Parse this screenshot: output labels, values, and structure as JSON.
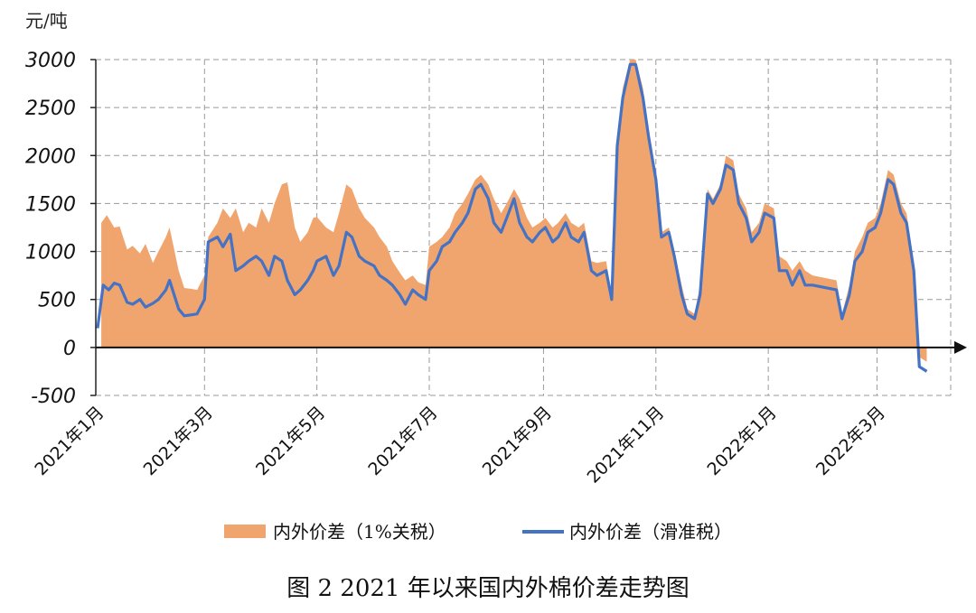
{
  "chart_data": {
    "type": "area",
    "y_unit": "元/吨",
    "ylim": [
      -500,
      3000
    ],
    "yticks": [
      3000,
      2500,
      2000,
      1500,
      1000,
      500,
      0,
      -500
    ],
    "x_tick_labels": [
      "2021年1月",
      "2021年3月",
      "2021年5月",
      "2021年7月",
      "2021年9月",
      "2021年11月",
      "2022年1月",
      "2022年3月"
    ],
    "x_ticks": [
      "2021-01-01",
      "2021-03-01",
      "2021-05-01",
      "2021-07-01",
      "2021-09-01",
      "2021-11-01",
      "2022-01-01",
      "2022-03-01"
    ],
    "grid": true,
    "legend_position": "bottom",
    "series": [
      {
        "name": "内外价差（1%关税）",
        "kind": "area",
        "color": "#f0a46e",
        "points": [
          [
            "2021-01-04",
            1300
          ],
          [
            "2021-01-07",
            1380
          ],
          [
            "2021-01-11",
            1250
          ],
          [
            "2021-01-14",
            1260
          ],
          [
            "2021-01-18",
            1020
          ],
          [
            "2021-01-21",
            1060
          ],
          [
            "2021-01-25",
            980
          ],
          [
            "2021-01-28",
            1080
          ],
          [
            "2021-02-01",
            880
          ],
          [
            "2021-02-04",
            1000
          ],
          [
            "2021-02-08",
            1150
          ],
          [
            "2021-02-10",
            1250
          ],
          [
            "2021-02-15",
            800
          ],
          [
            "2021-02-18",
            620
          ],
          [
            "2021-02-22",
            610
          ],
          [
            "2021-02-25",
            600
          ],
          [
            "2021-03-01",
            750
          ],
          [
            "2021-03-03",
            1150
          ],
          [
            "2021-03-08",
            1300
          ],
          [
            "2021-03-11",
            1450
          ],
          [
            "2021-03-15",
            1350
          ],
          [
            "2021-03-18",
            1450
          ],
          [
            "2021-03-22",
            1200
          ],
          [
            "2021-03-25",
            1300
          ],
          [
            "2021-03-29",
            1250
          ],
          [
            "2021-04-01",
            1450
          ],
          [
            "2021-04-05",
            1300
          ],
          [
            "2021-04-08",
            1500
          ],
          [
            "2021-04-12",
            1700
          ],
          [
            "2021-04-15",
            1720
          ],
          [
            "2021-04-19",
            1250
          ],
          [
            "2021-04-22",
            1100
          ],
          [
            "2021-04-26",
            1200
          ],
          [
            "2021-04-29",
            1350
          ],
          [
            "2021-05-01",
            1360
          ],
          [
            "2021-05-06",
            1250
          ],
          [
            "2021-05-10",
            1200
          ],
          [
            "2021-05-13",
            1400
          ],
          [
            "2021-05-17",
            1700
          ],
          [
            "2021-05-20",
            1650
          ],
          [
            "2021-05-24",
            1450
          ],
          [
            "2021-05-27",
            1350
          ],
          [
            "2021-06-01",
            1250
          ],
          [
            "2021-06-04",
            1150
          ],
          [
            "2021-06-08",
            1050
          ],
          [
            "2021-06-11",
            900
          ],
          [
            "2021-06-15",
            780
          ],
          [
            "2021-06-18",
            700
          ],
          [
            "2021-06-22",
            750
          ],
          [
            "2021-06-25",
            680
          ],
          [
            "2021-06-29",
            650
          ],
          [
            "2021-07-01",
            1050
          ],
          [
            "2021-07-05",
            1100
          ],
          [
            "2021-07-08",
            1150
          ],
          [
            "2021-07-12",
            1250
          ],
          [
            "2021-07-15",
            1400
          ],
          [
            "2021-07-19",
            1500
          ],
          [
            "2021-07-22",
            1600
          ],
          [
            "2021-07-26",
            1750
          ],
          [
            "2021-07-29",
            1800
          ],
          [
            "2021-08-02",
            1700
          ],
          [
            "2021-08-05",
            1550
          ],
          [
            "2021-08-09",
            1400
          ],
          [
            "2021-08-12",
            1500
          ],
          [
            "2021-08-16",
            1650
          ],
          [
            "2021-08-19",
            1550
          ],
          [
            "2021-08-23",
            1350
          ],
          [
            "2021-08-26",
            1250
          ],
          [
            "2021-08-30",
            1300
          ],
          [
            "2021-09-02",
            1350
          ],
          [
            "2021-09-06",
            1250
          ],
          [
            "2021-09-09",
            1300
          ],
          [
            "2021-09-13",
            1400
          ],
          [
            "2021-09-16",
            1300
          ],
          [
            "2021-09-20",
            1250
          ],
          [
            "2021-09-23",
            1300
          ],
          [
            "2021-09-27",
            900
          ],
          [
            "2021-09-30",
            880
          ],
          [
            "2021-10-05",
            900
          ],
          [
            "2021-10-08",
            550
          ],
          [
            "2021-10-11",
            2200
          ],
          [
            "2021-10-14",
            2700
          ],
          [
            "2021-10-18",
            3000
          ],
          [
            "2021-10-21",
            3000
          ],
          [
            "2021-10-25",
            2700
          ],
          [
            "2021-10-28",
            2300
          ],
          [
            "2021-11-01",
            1800
          ],
          [
            "2021-11-04",
            1200
          ],
          [
            "2021-11-08",
            1250
          ],
          [
            "2021-11-11",
            1000
          ],
          [
            "2021-11-15",
            650
          ],
          [
            "2021-11-18",
            400
          ],
          [
            "2021-11-22",
            350
          ],
          [
            "2021-11-25",
            650
          ],
          [
            "2021-11-29",
            1650
          ],
          [
            "2021-12-02",
            1550
          ],
          [
            "2021-12-06",
            1700
          ],
          [
            "2021-12-09",
            2000
          ],
          [
            "2021-12-13",
            1950
          ],
          [
            "2021-12-16",
            1600
          ],
          [
            "2021-12-20",
            1450
          ],
          [
            "2021-12-23",
            1200
          ],
          [
            "2021-12-27",
            1300
          ],
          [
            "2021-12-30",
            1500
          ],
          [
            "2022-01-04",
            1450
          ],
          [
            "2022-01-07",
            950
          ],
          [
            "2022-01-11",
            900
          ],
          [
            "2022-01-14",
            800
          ],
          [
            "2022-01-18",
            900
          ],
          [
            "2022-01-21",
            800
          ],
          [
            "2022-01-25",
            750
          ],
          [
            "2022-02-07",
            700
          ],
          [
            "2022-02-10",
            350
          ],
          [
            "2022-02-14",
            650
          ],
          [
            "2022-02-17",
            1000
          ],
          [
            "2022-02-21",
            1150
          ],
          [
            "2022-02-24",
            1300
          ],
          [
            "2022-02-28",
            1350
          ],
          [
            "2022-03-03",
            1500
          ],
          [
            "2022-03-07",
            1850
          ],
          [
            "2022-03-10",
            1800
          ],
          [
            "2022-03-14",
            1500
          ],
          [
            "2022-03-17",
            1400
          ],
          [
            "2022-03-21",
            900
          ],
          [
            "2022-03-24",
            -100
          ],
          [
            "2022-03-28",
            -150
          ]
        ]
      },
      {
        "name": "内外价差（滑准税）",
        "kind": "line",
        "color": "#4472c4",
        "points": [
          [
            "2021-01-02",
            200
          ],
          [
            "2021-01-05",
            650
          ],
          [
            "2021-01-08",
            600
          ],
          [
            "2021-01-11",
            670
          ],
          [
            "2021-01-14",
            650
          ],
          [
            "2021-01-18",
            470
          ],
          [
            "2021-01-21",
            450
          ],
          [
            "2021-01-25",
            500
          ],
          [
            "2021-01-28",
            420
          ],
          [
            "2021-02-01",
            460
          ],
          [
            "2021-02-04",
            500
          ],
          [
            "2021-02-08",
            600
          ],
          [
            "2021-02-10",
            700
          ],
          [
            "2021-02-15",
            400
          ],
          [
            "2021-02-18",
            330
          ],
          [
            "2021-02-22",
            340
          ],
          [
            "2021-02-25",
            350
          ],
          [
            "2021-03-01",
            500
          ],
          [
            "2021-03-03",
            1100
          ],
          [
            "2021-03-08",
            1150
          ],
          [
            "2021-03-11",
            1050
          ],
          [
            "2021-03-15",
            1180
          ],
          [
            "2021-03-18",
            800
          ],
          [
            "2021-03-22",
            850
          ],
          [
            "2021-03-25",
            900
          ],
          [
            "2021-03-29",
            950
          ],
          [
            "2021-04-01",
            900
          ],
          [
            "2021-04-05",
            750
          ],
          [
            "2021-04-08",
            950
          ],
          [
            "2021-04-12",
            900
          ],
          [
            "2021-04-15",
            700
          ],
          [
            "2021-04-19",
            550
          ],
          [
            "2021-04-22",
            600
          ],
          [
            "2021-04-26",
            700
          ],
          [
            "2021-04-29",
            800
          ],
          [
            "2021-05-01",
            900
          ],
          [
            "2021-05-06",
            950
          ],
          [
            "2021-05-10",
            750
          ],
          [
            "2021-05-13",
            850
          ],
          [
            "2021-05-17",
            1200
          ],
          [
            "2021-05-20",
            1150
          ],
          [
            "2021-05-24",
            950
          ],
          [
            "2021-05-27",
            900
          ],
          [
            "2021-06-01",
            850
          ],
          [
            "2021-06-04",
            750
          ],
          [
            "2021-06-08",
            700
          ],
          [
            "2021-06-11",
            650
          ],
          [
            "2021-06-15",
            550
          ],
          [
            "2021-06-18",
            450
          ],
          [
            "2021-06-22",
            600
          ],
          [
            "2021-06-25",
            550
          ],
          [
            "2021-06-29",
            500
          ],
          [
            "2021-07-01",
            800
          ],
          [
            "2021-07-05",
            900
          ],
          [
            "2021-07-08",
            1050
          ],
          [
            "2021-07-12",
            1100
          ],
          [
            "2021-07-15",
            1200
          ],
          [
            "2021-07-19",
            1300
          ],
          [
            "2021-07-22",
            1400
          ],
          [
            "2021-07-26",
            1650
          ],
          [
            "2021-07-29",
            1700
          ],
          [
            "2021-08-02",
            1550
          ],
          [
            "2021-08-05",
            1300
          ],
          [
            "2021-08-09",
            1200
          ],
          [
            "2021-08-12",
            1350
          ],
          [
            "2021-08-16",
            1550
          ],
          [
            "2021-08-19",
            1300
          ],
          [
            "2021-08-23",
            1150
          ],
          [
            "2021-08-26",
            1100
          ],
          [
            "2021-08-30",
            1200
          ],
          [
            "2021-09-02",
            1250
          ],
          [
            "2021-09-06",
            1100
          ],
          [
            "2021-09-09",
            1150
          ],
          [
            "2021-09-13",
            1300
          ],
          [
            "2021-09-16",
            1150
          ],
          [
            "2021-09-20",
            1100
          ],
          [
            "2021-09-23",
            1200
          ],
          [
            "2021-09-27",
            800
          ],
          [
            "2021-09-30",
            750
          ],
          [
            "2021-10-05",
            800
          ],
          [
            "2021-10-08",
            500
          ],
          [
            "2021-10-11",
            2100
          ],
          [
            "2021-10-14",
            2600
          ],
          [
            "2021-10-18",
            2950
          ],
          [
            "2021-10-21",
            2950
          ],
          [
            "2021-10-25",
            2600
          ],
          [
            "2021-10-28",
            2200
          ],
          [
            "2021-11-01",
            1750
          ],
          [
            "2021-11-04",
            1150
          ],
          [
            "2021-11-08",
            1200
          ],
          [
            "2021-11-11",
            950
          ],
          [
            "2021-11-15",
            550
          ],
          [
            "2021-11-18",
            350
          ],
          [
            "2021-11-22",
            300
          ],
          [
            "2021-11-25",
            550
          ],
          [
            "2021-11-29",
            1600
          ],
          [
            "2021-12-02",
            1500
          ],
          [
            "2021-12-06",
            1650
          ],
          [
            "2021-12-09",
            1900
          ],
          [
            "2021-12-13",
            1850
          ],
          [
            "2021-12-16",
            1500
          ],
          [
            "2021-12-20",
            1350
          ],
          [
            "2021-12-23",
            1100
          ],
          [
            "2021-12-27",
            1200
          ],
          [
            "2021-12-30",
            1400
          ],
          [
            "2022-01-04",
            1350
          ],
          [
            "2022-01-07",
            800
          ],
          [
            "2022-01-11",
            800
          ],
          [
            "2022-01-14",
            650
          ],
          [
            "2022-01-18",
            800
          ],
          [
            "2022-01-21",
            650
          ],
          [
            "2022-01-25",
            650
          ],
          [
            "2022-02-07",
            600
          ],
          [
            "2022-02-10",
            300
          ],
          [
            "2022-02-14",
            550
          ],
          [
            "2022-02-17",
            900
          ],
          [
            "2022-02-21",
            1000
          ],
          [
            "2022-02-24",
            1200
          ],
          [
            "2022-02-28",
            1250
          ],
          [
            "2022-03-03",
            1400
          ],
          [
            "2022-03-07",
            1750
          ],
          [
            "2022-03-10",
            1700
          ],
          [
            "2022-03-14",
            1400
          ],
          [
            "2022-03-17",
            1300
          ],
          [
            "2022-03-21",
            800
          ],
          [
            "2022-03-24",
            -200
          ],
          [
            "2022-03-28",
            -250
          ]
        ]
      }
    ]
  },
  "caption": "图 2 2021 年以来国内外棉价差走势图"
}
